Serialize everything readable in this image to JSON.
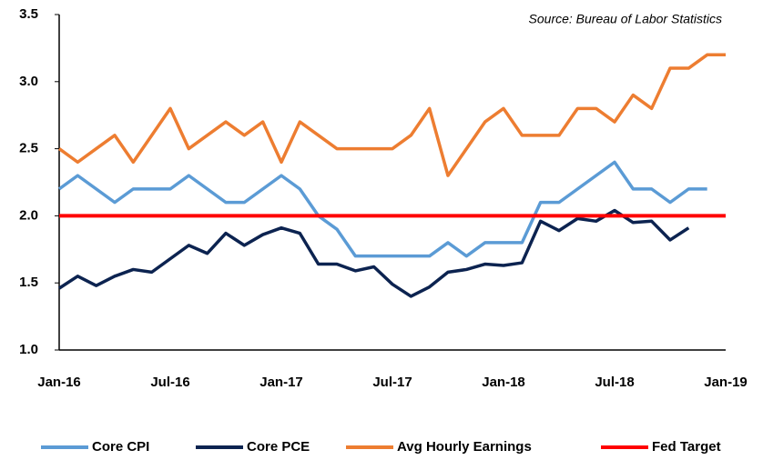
{
  "chart_data": {
    "type": "line",
    "annotation": "Source: Bureau of Labor Statistics",
    "categories": [
      "Jan-16",
      null,
      null,
      null,
      null,
      null,
      "Jul-16",
      null,
      null,
      null,
      null,
      null,
      "Jan-17",
      null,
      null,
      null,
      null,
      null,
      "Jul-17",
      null,
      null,
      null,
      null,
      null,
      "Jan-18",
      null,
      null,
      null,
      null,
      null,
      "Jul-18",
      null,
      null,
      null,
      null,
      null,
      "Jan-19"
    ],
    "ylim": [
      1.0,
      3.5
    ],
    "yticks": [
      {
        "value": 1.0,
        "label": "1.0"
      },
      1.5,
      {
        "value": 2.0,
        "label": "2.0"
      },
      2.5,
      {
        "value": 3.0,
        "label": "3.0"
      },
      3.5
    ],
    "grid": false,
    "legend": "bottom",
    "series": [
      {
        "name": "Core CPI",
        "color": "#5b9bd5",
        "values": [
          2.2,
          2.3,
          2.2,
          2.1,
          2.2,
          2.2,
          2.2,
          2.3,
          2.2,
          2.1,
          2.1,
          2.2,
          2.3,
          2.2,
          2.0,
          1.9,
          1.7,
          1.7,
          1.7,
          1.7,
          1.7,
          1.8,
          1.7,
          1.8,
          1.8,
          1.8,
          2.1,
          2.1,
          2.2,
          2.3,
          2.4,
          2.2,
          2.2,
          2.1,
          2.2,
          2.2,
          null
        ]
      },
      {
        "name": "Core PCE",
        "color": "#0c2350",
        "values": [
          1.46,
          1.55,
          1.48,
          1.55,
          1.6,
          1.58,
          1.68,
          1.78,
          1.72,
          1.87,
          1.78,
          1.86,
          1.91,
          1.87,
          1.64,
          1.64,
          1.59,
          1.62,
          1.49,
          1.4,
          1.47,
          1.58,
          1.6,
          1.64,
          1.63,
          1.65,
          1.96,
          1.89,
          1.98,
          1.96,
          2.04,
          1.95,
          1.96,
          1.82,
          1.91,
          null,
          null
        ]
      },
      {
        "name": "Avg Hourly Earnings",
        "color": "#ed7d31",
        "values": [
          2.5,
          2.4,
          2.5,
          2.6,
          2.4,
          2.6,
          2.8,
          2.5,
          2.6,
          2.7,
          2.6,
          2.7,
          2.4,
          2.7,
          2.6,
          2.5,
          2.5,
          2.5,
          2.5,
          2.6,
          2.8,
          2.3,
          2.5,
          2.7,
          2.8,
          2.6,
          2.6,
          2.6,
          2.8,
          2.8,
          2.7,
          2.9,
          2.8,
          3.1,
          3.1,
          3.2,
          3.2
        ]
      },
      {
        "name": "Fed Target",
        "color": "#ff0000",
        "values": [
          2.0,
          2.0,
          2.0,
          2.0,
          2.0,
          2.0,
          2.0,
          2.0,
          2.0,
          2.0,
          2.0,
          2.0,
          2.0,
          2.0,
          2.0,
          2.0,
          2.0,
          2.0,
          2.0,
          2.0,
          2.0,
          2.0,
          2.0,
          2.0,
          2.0,
          2.0,
          2.0,
          2.0,
          2.0,
          2.0,
          2.0,
          2.0,
          2.0,
          2.0,
          2.0,
          2.0,
          2.0
        ]
      }
    ]
  }
}
